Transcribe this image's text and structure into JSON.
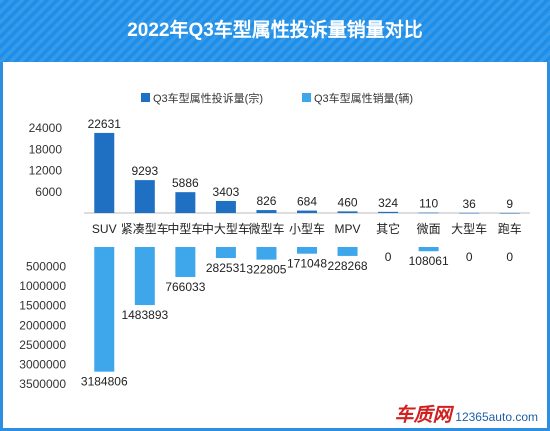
{
  "title": "2022年Q3车型属性投诉量销量对比",
  "watermark": {
    "brand": "车质网",
    "site": "12365auto.com"
  },
  "chart_data": {
    "type": "bar",
    "categories": [
      "SUV",
      "紧凑型车",
      "中型车",
      "中大型车",
      "微型车",
      "小型车",
      "MPV",
      "其它",
      "微面",
      "大型车",
      "跑车"
    ],
    "series": [
      {
        "name": "Q3车型属性投诉量(宗)",
        "values": [
          22631,
          9293,
          5886,
          3403,
          826,
          684,
          460,
          324,
          110,
          36,
          9
        ],
        "color": "#1f6fc2"
      },
      {
        "name": "Q3车型属性销量(辆)",
        "values": [
          3184806,
          1483893,
          766033,
          282531,
          322805,
          171048,
          228268,
          0,
          108061,
          0,
          0
        ],
        "color": "#3ea7ec"
      }
    ],
    "top_axis": {
      "ticks": [
        "6000",
        "12000",
        "18000",
        "24000"
      ],
      "max": 26000
    },
    "bottom_axis": {
      "ticks": [
        "500000",
        "1000000",
        "1500000",
        "2000000",
        "2500000",
        "3000000",
        "3500000"
      ],
      "max": 3500000
    },
    "legend": "top"
  }
}
